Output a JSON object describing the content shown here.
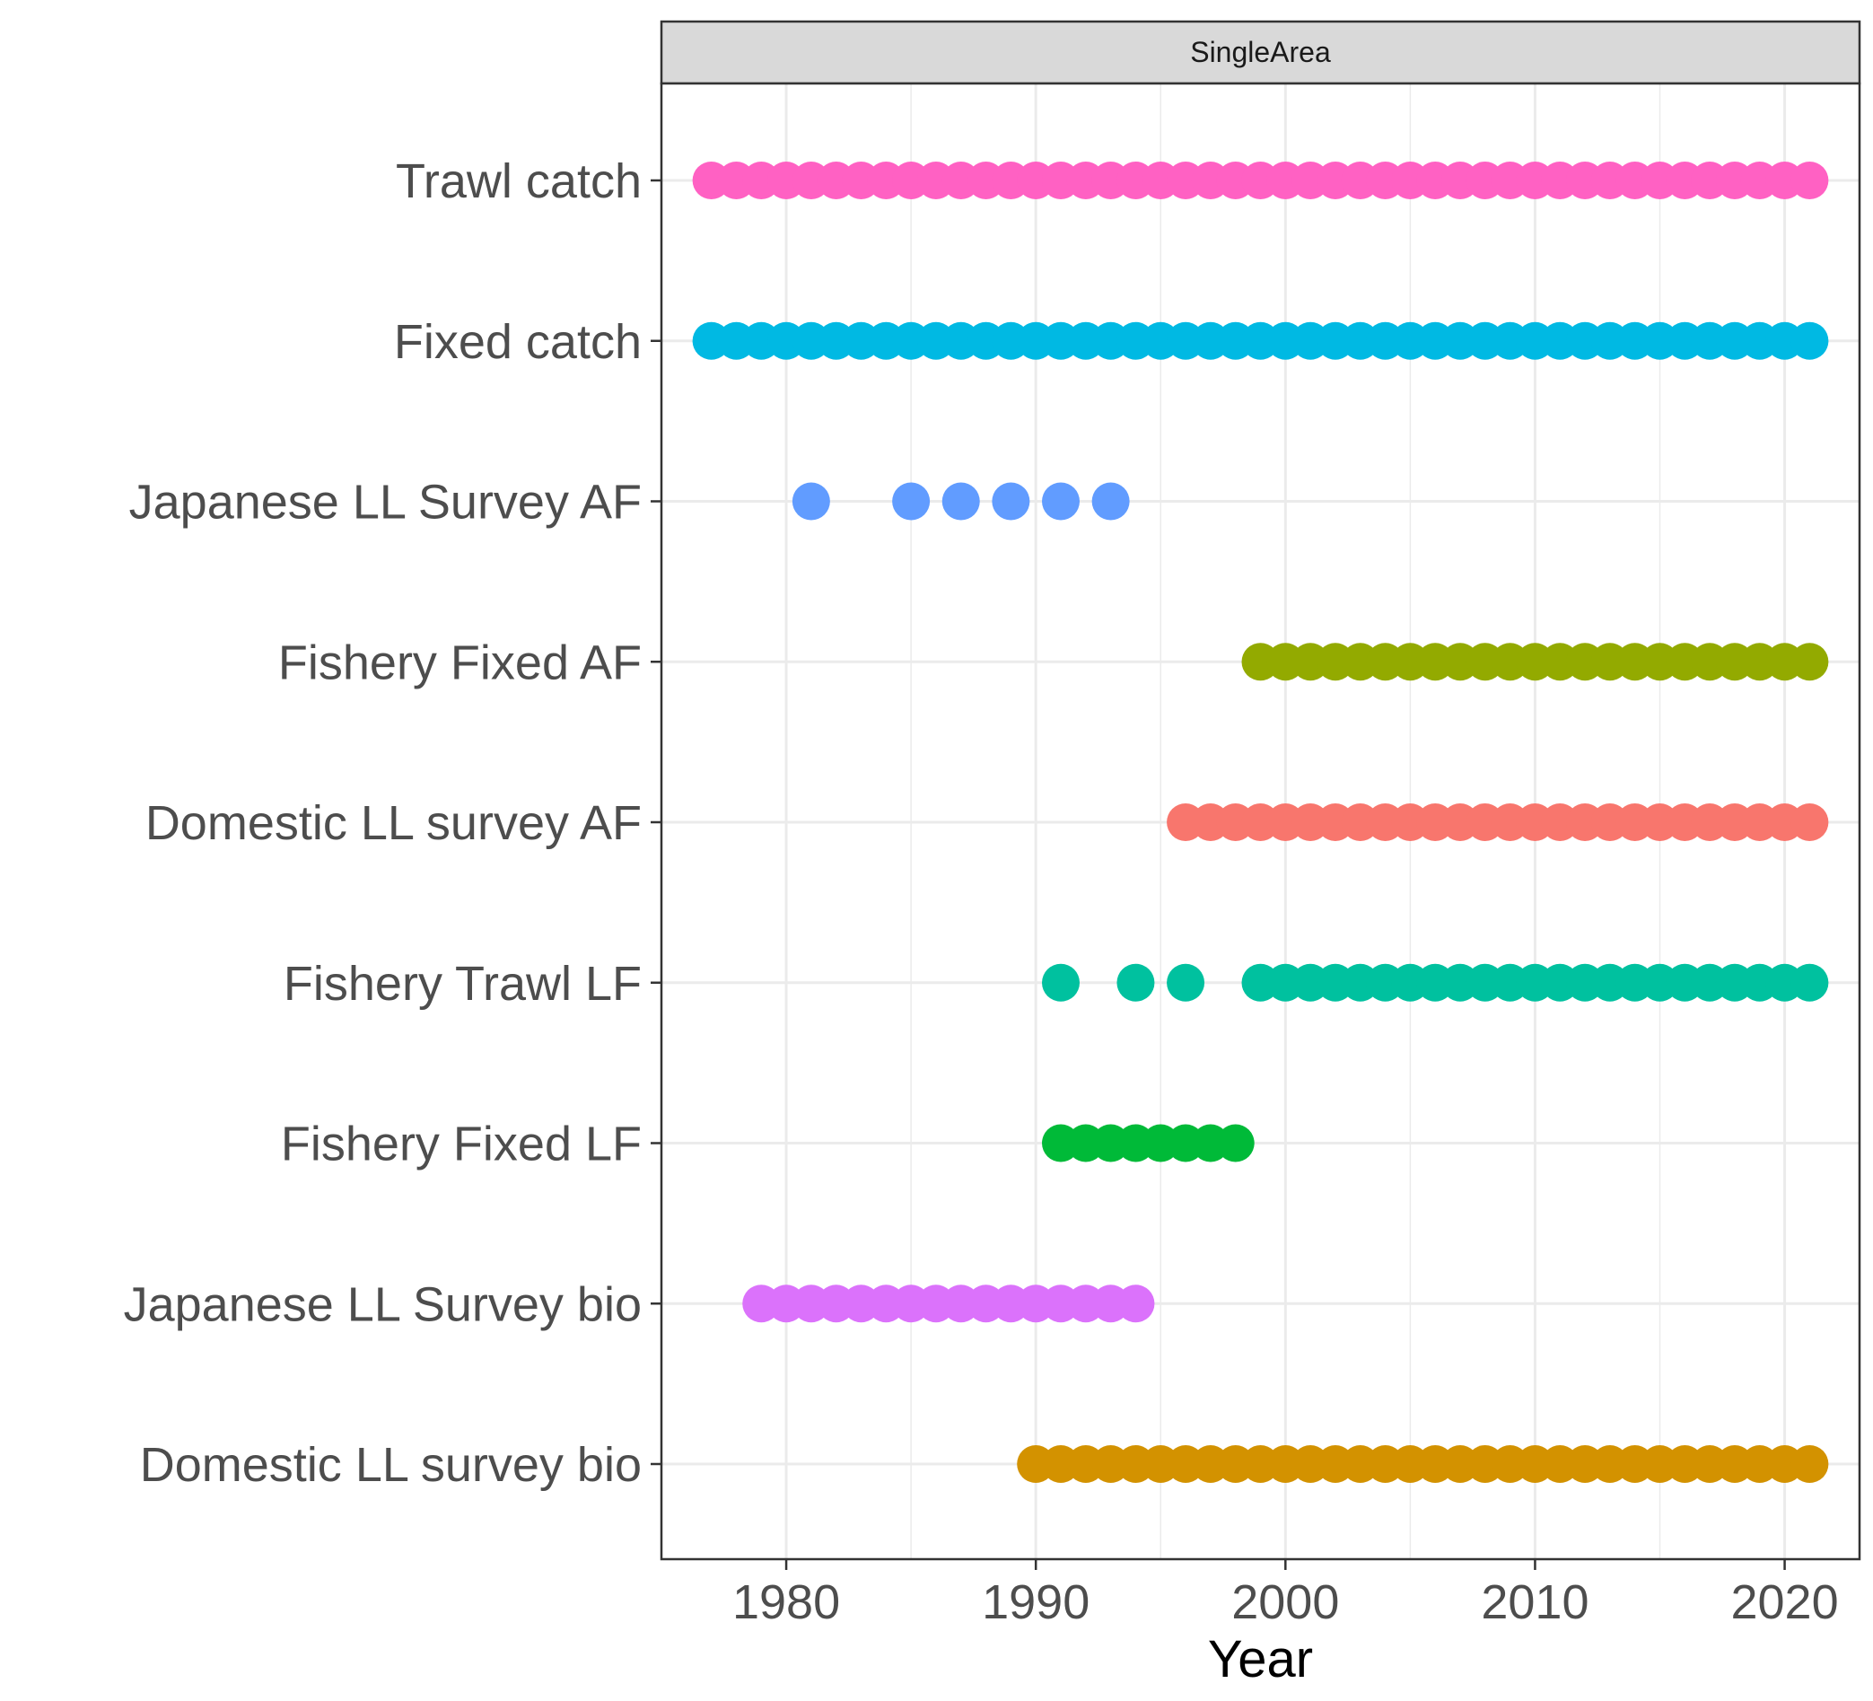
{
  "chart_data": {
    "type": "scatter",
    "facet_label": "SingleArea",
    "xlabel": "Year",
    "ylabel": "",
    "xlim": [
      1975,
      2023
    ],
    "x_ticks": [
      1980,
      1990,
      2000,
      2010,
      2020
    ],
    "grid": true,
    "series": [
      {
        "name": "Trawl catch",
        "color": "#FF61C3",
        "x": [
          1977,
          1978,
          1979,
          1980,
          1981,
          1982,
          1983,
          1984,
          1985,
          1986,
          1987,
          1988,
          1989,
          1990,
          1991,
          1992,
          1993,
          1994,
          1995,
          1996,
          1997,
          1998,
          1999,
          2000,
          2001,
          2002,
          2003,
          2004,
          2005,
          2006,
          2007,
          2008,
          2009,
          2010,
          2011,
          2012,
          2013,
          2014,
          2015,
          2016,
          2017,
          2018,
          2019,
          2020,
          2021
        ]
      },
      {
        "name": "Fixed catch",
        "color": "#00B9E3",
        "x": [
          1977,
          1978,
          1979,
          1980,
          1981,
          1982,
          1983,
          1984,
          1985,
          1986,
          1987,
          1988,
          1989,
          1990,
          1991,
          1992,
          1993,
          1994,
          1995,
          1996,
          1997,
          1998,
          1999,
          2000,
          2001,
          2002,
          2003,
          2004,
          2005,
          2006,
          2007,
          2008,
          2009,
          2010,
          2011,
          2012,
          2013,
          2014,
          2015,
          2016,
          2017,
          2018,
          2019,
          2020,
          2021
        ]
      },
      {
        "name": "Japanese LL Survey AF",
        "color": "#619CFF",
        "x": [
          1981,
          1985,
          1987,
          1989,
          1991,
          1993
        ]
      },
      {
        "name": "Fishery Fixed AF",
        "color": "#93AA00",
        "x": [
          1999,
          2000,
          2001,
          2002,
          2003,
          2004,
          2005,
          2006,
          2007,
          2008,
          2009,
          2010,
          2011,
          2012,
          2013,
          2014,
          2015,
          2016,
          2017,
          2018,
          2019,
          2020,
          2021
        ]
      },
      {
        "name": "Domestic LL survey AF",
        "color": "#F8766D",
        "x": [
          1996,
          1997,
          1998,
          1999,
          2000,
          2001,
          2002,
          2003,
          2004,
          2005,
          2006,
          2007,
          2008,
          2009,
          2010,
          2011,
          2012,
          2013,
          2014,
          2015,
          2016,
          2017,
          2018,
          2019,
          2020,
          2021
        ]
      },
      {
        "name": "Fishery Trawl LF",
        "color": "#00C19F",
        "x": [
          1991,
          1994,
          1996,
          1999,
          2000,
          2001,
          2002,
          2003,
          2004,
          2005,
          2006,
          2007,
          2008,
          2009,
          2010,
          2011,
          2012,
          2013,
          2014,
          2015,
          2016,
          2017,
          2018,
          2019,
          2020,
          2021
        ]
      },
      {
        "name": "Fishery Fixed LF",
        "color": "#00BA38",
        "x": [
          1991,
          1992,
          1993,
          1994,
          1995,
          1996,
          1997,
          1998
        ]
      },
      {
        "name": "Japanese LL Survey bio",
        "color": "#DB72FB",
        "x": [
          1979,
          1980,
          1981,
          1982,
          1983,
          1984,
          1985,
          1986,
          1987,
          1988,
          1989,
          1990,
          1991,
          1992,
          1993,
          1994
        ]
      },
      {
        "name": "Domestic LL survey bio",
        "color": "#D39200",
        "x": [
          1990,
          1991,
          1992,
          1993,
          1994,
          1995,
          1996,
          1997,
          1998,
          1999,
          2000,
          2001,
          2002,
          2003,
          2004,
          2005,
          2006,
          2007,
          2008,
          2009,
          2010,
          2011,
          2012,
          2013,
          2014,
          2015,
          2016,
          2017,
          2018,
          2019,
          2020,
          2021
        ]
      }
    ]
  }
}
